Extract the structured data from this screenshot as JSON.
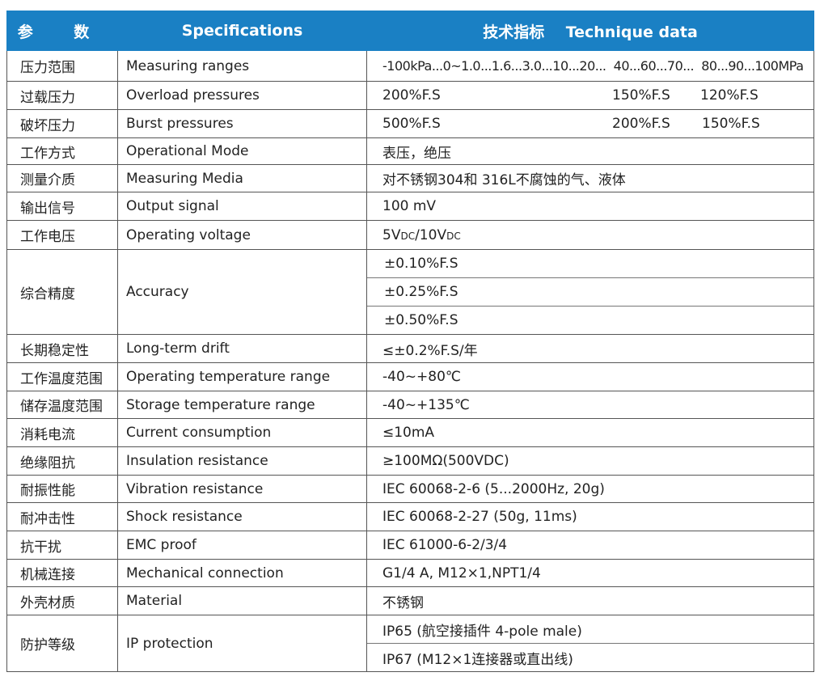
{
  "header": {
    "col1": "参 数",
    "col2": "Specifications",
    "col3_cn": "技术指标",
    "col3_en": "Technique data"
  },
  "rows": [
    {
      "cn": "压力范围",
      "en": "Measuring ranges",
      "value": "-100kPa...0~1.0...1.6...3.0...10...20...  40...60...70...  80...90...100MPa"
    },
    {
      "cn": "过载压力",
      "en": "Overload pressures",
      "values": [
        "200%F.S",
        "150%F.S",
        "120%F.S"
      ]
    },
    {
      "cn": "破坏压力",
      "en": "Burst pressures",
      "values": [
        "500%F.S",
        "200%F.S",
        "150%F.S"
      ]
    },
    {
      "cn": "工作方式",
      "en": "Operational Mode",
      "value": "表压，绝压"
    },
    {
      "cn": "测量介质",
      "en": "Measuring Media",
      "value": "对不锈钢304和 316L不腐蚀的气、液体"
    },
    {
      "cn": "输出信号",
      "en": "Output signal",
      "value": "100 mV"
    },
    {
      "cn": "工作电压",
      "en": "Operating voltage",
      "value": "5VDC/10VDC"
    },
    {
      "cn": "综合精度",
      "en": "Accuracy",
      "values": [
        "±0.10%F.S",
        "±0.25%F.S",
        "±0.50%F.S"
      ]
    },
    {
      "cn": "长期稳定性",
      "en": "Long-term drift",
      "value": "≤±0.2%F.S/年"
    },
    {
      "cn": "工作温度范围",
      "en": "Operating temperature range",
      "value": "-40~+80℃"
    },
    {
      "cn": "储存温度范围",
      "en": "Storage temperature range",
      "value": "-40~+135℃"
    },
    {
      "cn": "消耗电流",
      "en": "Current consumption",
      "value": "≤10mA"
    },
    {
      "cn": "绝缘阻抗",
      "en": "Insulation resistance",
      "value": "≥100MΩ(500VDC)"
    },
    {
      "cn": "耐振性能",
      "en": "Vibration resistance",
      "value": "IEC 60068-2-6 (5...2000Hz, 20g)"
    },
    {
      "cn": "耐冲击性",
      "en": "Shock resistance",
      "value": "IEC 60068-2-27 (50g, 11ms)"
    },
    {
      "cn": "抗干扰",
      "en": "EMC proof",
      "value": "IEC 61000-6-2/3/4"
    },
    {
      "cn": "机械连接",
      "en": "Mechanical connection",
      "value": "G1/4 A, M12×1,NPT1/4"
    },
    {
      "cn": "外壳材质",
      "en": "Material",
      "value": "不锈钢"
    },
    {
      "cn": "防护等级",
      "en": "IP protection",
      "values": [
        "IP65 (航空接插件 4-pole male)",
        "IP67 (M12×1连接器或直出线)"
      ]
    }
  ],
  "colors": {
    "header_bg": "#1a80c4"
  }
}
